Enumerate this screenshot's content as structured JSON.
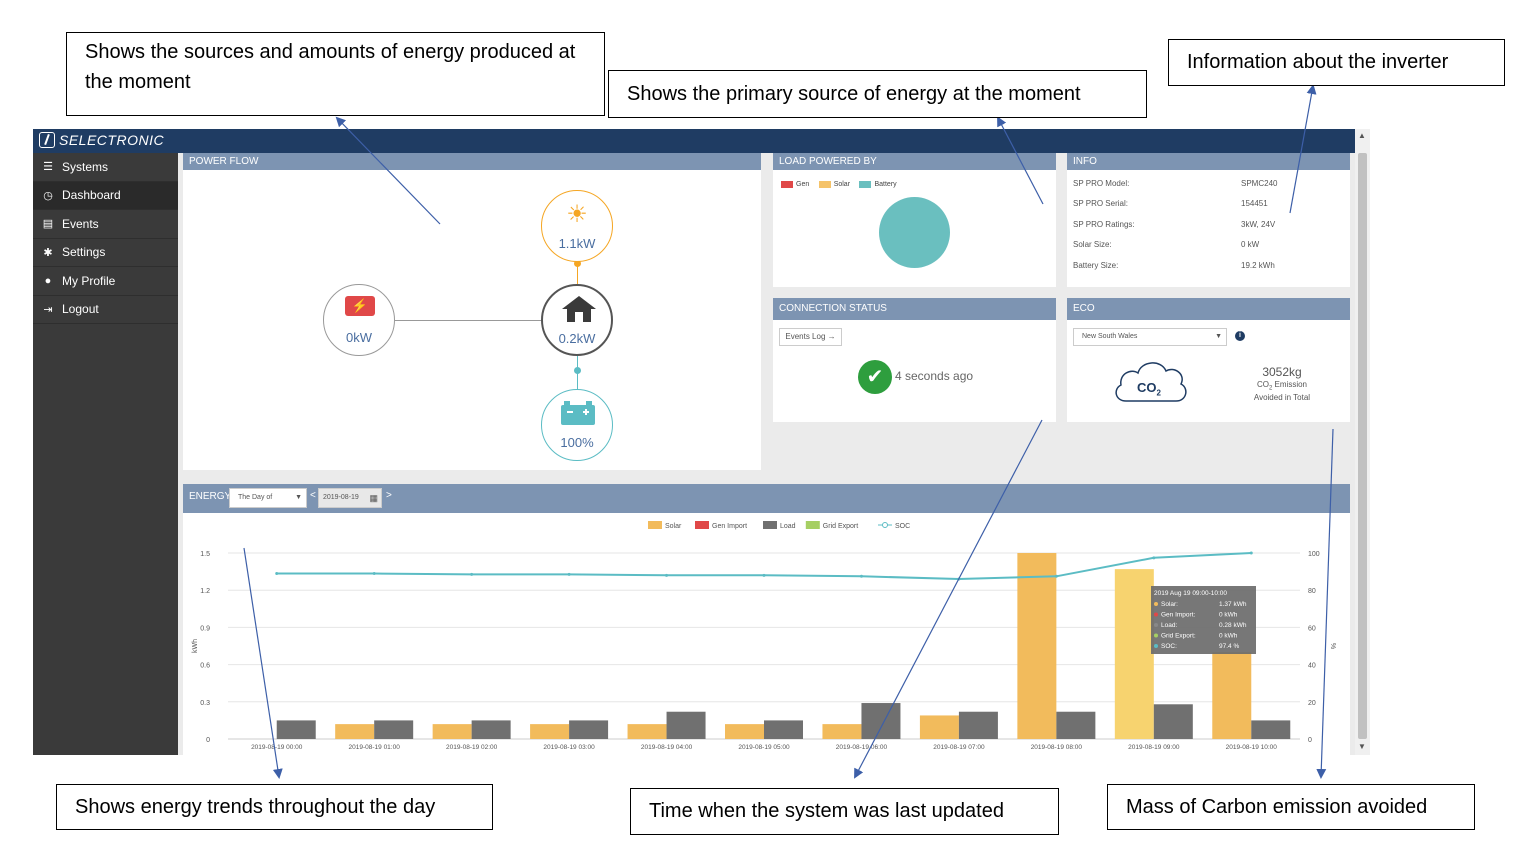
{
  "annotations": {
    "power_flow_note": "Shows the sources and amounts of energy produced at the moment",
    "load_powered_note": "Shows the primary source of energy at the moment",
    "info_note": "Information about the inverter",
    "energy_note": "Shows energy trends throughout the day",
    "connection_note": "Time when the system was last updated",
    "eco_note": "Mass of Carbon emission avoided"
  },
  "brand": "SELECTRONIC",
  "sidebar": {
    "items": [
      {
        "label": "Systems",
        "icon": "list-icon"
      },
      {
        "label": "Dashboard",
        "icon": "dashboard-icon"
      },
      {
        "label": "Events",
        "icon": "events-icon"
      },
      {
        "label": "Settings",
        "icon": "gear-icon"
      },
      {
        "label": "My Profile",
        "icon": "user-icon"
      },
      {
        "label": "Logout",
        "icon": "logout-icon"
      }
    ],
    "active_index": 1
  },
  "power_flow": {
    "title": "POWER FLOW",
    "solar_value": "1.1kW",
    "generator_value": "0kW",
    "home_value": "0.2kW",
    "battery_value": "100%",
    "colors": {
      "solar": "#f5a623",
      "generator": "#e04848",
      "home": "#555555",
      "battery": "#5bbcc4"
    }
  },
  "load_powered": {
    "title": "LOAD POWERED BY",
    "legend": [
      {
        "name": "Gen",
        "color": "#e04848"
      },
      {
        "name": "Solar",
        "color": "#f5c36a"
      },
      {
        "name": "Battery",
        "color": "#6abfbf"
      }
    ],
    "pie": [
      {
        "name": "Battery",
        "share": 1.0
      }
    ]
  },
  "info": {
    "title": "INFO",
    "rows": [
      {
        "label": "SP PRO Model:",
        "value": "SPMC240"
      },
      {
        "label": "SP PRO Serial:",
        "value": "154451"
      },
      {
        "label": "SP PRO Ratings:",
        "value": "3kW, 24V"
      },
      {
        "label": "Solar Size:",
        "value": "0 kW"
      },
      {
        "label": "Battery Size:",
        "value": "19.2 kWh"
      }
    ]
  },
  "connection": {
    "title": "CONNECTION STATUS",
    "events_button": "Events Log →",
    "status_text": "4 seconds ago",
    "status_color": "#2e9e3e"
  },
  "eco": {
    "title": "ECO",
    "region_selected": "New South Wales",
    "co2_label": "CO",
    "co2_sub": "2",
    "amount": "3052kg",
    "caption_line1_a": "CO",
    "caption_line1_sub": "2",
    "caption_line1_b": " Emission",
    "caption_line2": "Avoided in Total"
  },
  "energy": {
    "title": "ENERGY",
    "range_selected": "The Day of",
    "date_value": "2019-08-19",
    "prev": "<",
    "next": ">"
  },
  "chart_data": {
    "type": "bar",
    "categories": [
      "2019-08-19 00:00",
      "2019-08-19 01:00",
      "2019-08-19 02:00",
      "2019-08-19 03:00",
      "2019-08-19 04:00",
      "2019-08-19 05:00",
      "2019-08-19 06:00",
      "2019-08-19 07:00",
      "2019-08-19 08:00",
      "2019-08-19 09:00",
      "2019-08-19 10:00"
    ],
    "series": [
      {
        "name": "Solar",
        "color": "#f2bb5c",
        "values": [
          0,
          0.12,
          0.12,
          0.12,
          0.12,
          0.12,
          0.12,
          0.19,
          1.5,
          1.37,
          0.7
        ]
      },
      {
        "name": "Gen Import",
        "color": "#e04848",
        "values": [
          0,
          0,
          0,
          0,
          0,
          0,
          0,
          0,
          0,
          0,
          0
        ]
      },
      {
        "name": "Load",
        "color": "#707070",
        "values": [
          0.15,
          0.15,
          0.15,
          0.15,
          0.22,
          0.15,
          0.29,
          0.22,
          0.22,
          0.28,
          0.15
        ]
      },
      {
        "name": "Grid Export",
        "color": "#a6cf63",
        "values": [
          0,
          0,
          0,
          0,
          0,
          0,
          0,
          0,
          0,
          0,
          0
        ]
      },
      {
        "name": "SOC",
        "color": "#5bbcc4",
        "type": "line",
        "axis": "right",
        "values": [
          89,
          89,
          88.5,
          88.5,
          88,
          88,
          87.5,
          86,
          87.5,
          97.4,
          100
        ]
      }
    ],
    "ylabel": "kWh",
    "y2label": "%",
    "ylim": [
      0,
      1.5
    ],
    "y2lim": [
      0,
      100
    ],
    "yticks": [
      "0",
      "0.3",
      "0.6",
      "0.9",
      "1.2",
      "1.5"
    ],
    "y2ticks": [
      "0",
      "20",
      "40",
      "60",
      "80",
      "100"
    ],
    "grid": true,
    "legend": "top-center",
    "tooltip": {
      "title": "2019 Aug 19 09:00-10:00",
      "rows": [
        {
          "label": "Solar:",
          "value": "1.37 kWh",
          "color": "#f2bb5c"
        },
        {
          "label": "Gen Import:",
          "value": "0 kWh",
          "color": "#e04848"
        },
        {
          "label": "Load:",
          "value": "0.28 kWh",
          "color": "#888888"
        },
        {
          "label": "Grid Export:",
          "value": "0 kWh",
          "color": "#a6cf63"
        },
        {
          "label": "SOC:",
          "value": "97.4 %",
          "color": "#5bbcc4"
        }
      ]
    }
  }
}
